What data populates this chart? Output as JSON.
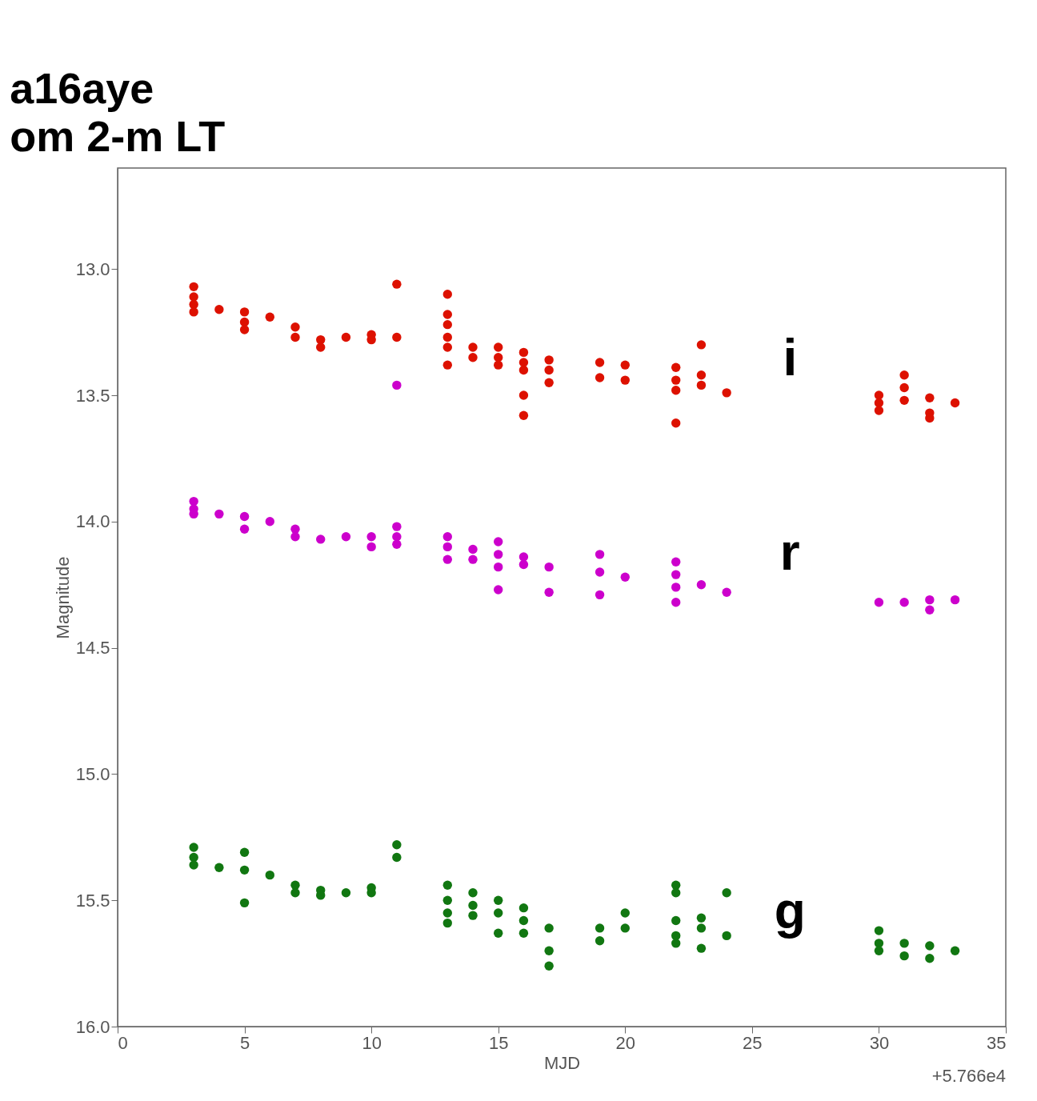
{
  "chart_data": {
    "type": "scatter",
    "title": "a16aye",
    "subtitle": "om 2-m LT",
    "xlabel": "MJD",
    "ylabel": "Magnitude",
    "annotations": [
      "+5.766e4"
    ],
    "xlim": [
      0,
      35
    ],
    "xticks": [
      0,
      5,
      10,
      15,
      20,
      25,
      30,
      35
    ],
    "ylim": [
      16.0,
      12.6
    ],
    "yticks": [
      {
        "value": 13,
        "label": "13.0"
      },
      13.5,
      {
        "value": 14,
        "label": "14.0"
      },
      14.5,
      {
        "value": 15,
        "label": "15.0"
      },
      15.5,
      {
        "value": 16,
        "label": "16.0"
      }
    ],
    "grid": false,
    "legend": false,
    "marker": "circle",
    "series": [
      {
        "name": "i",
        "color": "#dd1100",
        "x": [
          3,
          3,
          3,
          3,
          4,
          5,
          5,
          5,
          6,
          7,
          7,
          8,
          8,
          9,
          10,
          10,
          11,
          11,
          13,
          13,
          13,
          13,
          13,
          13,
          14,
          14,
          15,
          15,
          15,
          16,
          16,
          16,
          16,
          16,
          17,
          17,
          17,
          19,
          19,
          20,
          20,
          22,
          22,
          22,
          22,
          23,
          23,
          23,
          24,
          30,
          30,
          30,
          31,
          31,
          31,
          32,
          32,
          32,
          33
        ],
        "values": [
          13.07,
          13.11,
          13.14,
          13.17,
          13.16,
          13.17,
          13.21,
          13.24,
          13.19,
          13.23,
          13.27,
          13.28,
          13.31,
          13.27,
          13.26,
          13.28,
          13.06,
          13.27,
          13.1,
          13.18,
          13.22,
          13.27,
          13.31,
          13.38,
          13.31,
          13.35,
          13.31,
          13.35,
          13.38,
          13.33,
          13.37,
          13.4,
          13.5,
          13.58,
          13.36,
          13.4,
          13.45,
          13.37,
          13.43,
          13.38,
          13.44,
          13.39,
          13.44,
          13.48,
          13.61,
          13.3,
          13.42,
          13.46,
          13.49,
          13.5,
          13.53,
          13.56,
          13.42,
          13.47,
          13.52,
          13.51,
          13.57,
          13.59,
          13.53
        ]
      },
      {
        "name": "r",
        "color": "#cc00cc",
        "x": [
          3,
          3,
          3,
          4,
          5,
          5,
          6,
          7,
          7,
          8,
          9,
          10,
          10,
          11,
          11,
          11,
          11,
          13,
          13,
          13,
          14,
          14,
          15,
          15,
          15,
          15,
          16,
          16,
          17,
          17,
          19,
          19,
          19,
          20,
          22,
          22,
          22,
          22,
          23,
          24,
          30,
          31,
          32,
          32,
          33
        ],
        "values": [
          13.92,
          13.95,
          13.97,
          13.97,
          13.98,
          14.03,
          14.0,
          14.03,
          14.06,
          14.07,
          14.06,
          14.06,
          14.1,
          14.02,
          14.06,
          14.09,
          13.46,
          14.06,
          14.1,
          14.15,
          14.11,
          14.15,
          14.08,
          14.13,
          14.18,
          14.27,
          14.14,
          14.17,
          14.18,
          14.28,
          14.13,
          14.2,
          14.29,
          14.22,
          14.16,
          14.21,
          14.26,
          14.32,
          14.25,
          14.28,
          14.32,
          14.32,
          14.31,
          14.35,
          14.31
        ]
      },
      {
        "name": "g",
        "color": "#117711",
        "x": [
          3,
          3,
          3,
          4,
          5,
          5,
          5,
          6,
          7,
          7,
          8,
          8,
          9,
          10,
          10,
          11,
          11,
          13,
          13,
          13,
          13,
          14,
          14,
          14,
          15,
          15,
          15,
          16,
          16,
          16,
          17,
          17,
          17,
          19,
          19,
          20,
          20,
          22,
          22,
          22,
          22,
          22,
          23,
          23,
          23,
          24,
          24,
          30,
          30,
          30,
          31,
          31,
          32,
          32,
          33
        ],
        "values": [
          15.29,
          15.33,
          15.36,
          15.37,
          15.31,
          15.38,
          15.51,
          15.4,
          15.44,
          15.47,
          15.46,
          15.48,
          15.47,
          15.45,
          15.47,
          15.28,
          15.33,
          15.44,
          15.5,
          15.55,
          15.59,
          15.47,
          15.52,
          15.56,
          15.5,
          15.55,
          15.63,
          15.53,
          15.58,
          15.63,
          15.61,
          15.7,
          15.76,
          15.61,
          15.66,
          15.55,
          15.61,
          15.44,
          15.47,
          15.58,
          15.64,
          15.67,
          15.57,
          15.61,
          15.69,
          15.47,
          15.64,
          15.62,
          15.67,
          15.7,
          15.67,
          15.72,
          15.68,
          15.73,
          15.7
        ]
      }
    ]
  }
}
